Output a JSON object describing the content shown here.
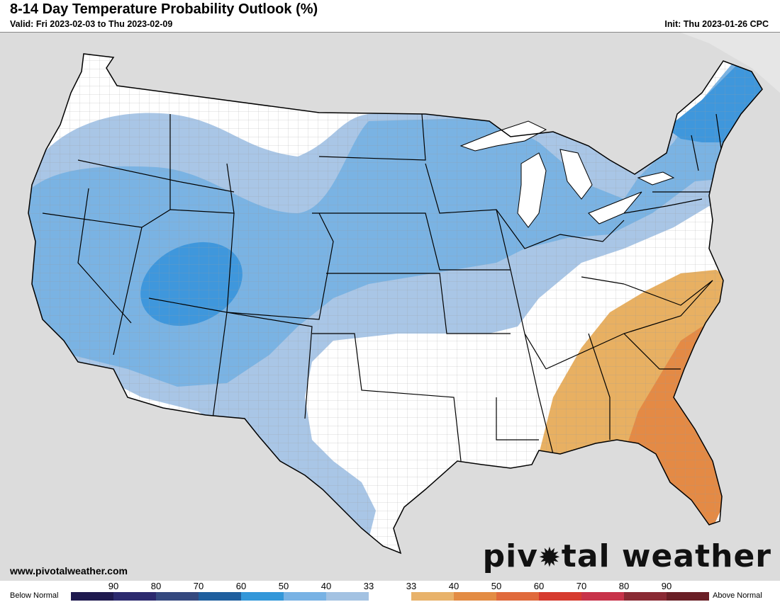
{
  "header": {
    "title": "8-14 Day Temperature Probability Outlook (%)",
    "valid": "Valid: Fri 2023-02-03 to Thu 2023-02-09",
    "init": "Init: Thu 2023-01-26 CPC"
  },
  "footer": {
    "url": "www.pivotalweather.com",
    "logo_left": "piv",
    "logo_right": "tal weather"
  },
  "legend": {
    "below_label": "Below Normal",
    "above_label": "Above Normal",
    "ticks": [
      "90",
      "80",
      "70",
      "60",
      "50",
      "40",
      "33",
      "33",
      "40",
      "50",
      "60",
      "70",
      "80",
      "90"
    ],
    "colors": [
      "#1f1a4f",
      "#2c2a6e",
      "#35497f",
      "#1f5f9e",
      "#3397d9",
      "#78b2e4",
      "#a3c2e2",
      "#ffffff",
      "#e8b26a",
      "#e38c44",
      "#e06a3c",
      "#d63b2f",
      "#c8334a",
      "#8a2a34",
      "#6a1f26"
    ]
  },
  "map": {
    "background": "#dcdcdc",
    "land": "#ffffff",
    "water": "#ffffff",
    "regions": [
      {
        "category": "below",
        "probability": "33-40",
        "color": "#a9c6e6"
      },
      {
        "category": "below",
        "probability": "40-50",
        "color": "#7ab3e3"
      },
      {
        "category": "below",
        "probability": "50-60",
        "color": "#3f97dc"
      },
      {
        "category": "above",
        "probability": "33-40",
        "color": "#e8b062"
      },
      {
        "category": "above",
        "probability": "40-50",
        "color": "#e48a45"
      }
    ]
  }
}
